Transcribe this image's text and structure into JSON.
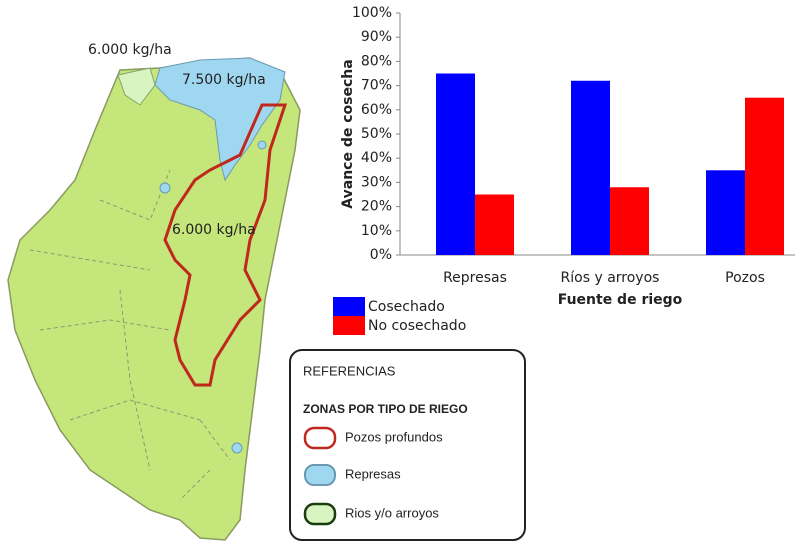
{
  "chart_data": {
    "type": "bar",
    "categories": [
      "Represas",
      "Ríos y arroyos",
      "Pozos"
    ],
    "series": [
      {
        "name": "Cosechado",
        "color": "#0000ff",
        "values": [
          75,
          72,
          35
        ]
      },
      {
        "name": "No cosechado",
        "color": "#ff0000",
        "values": [
          25,
          28,
          65
        ]
      }
    ],
    "ylim": [
      0,
      100
    ],
    "yticks": [
      {
        "value": 0,
        "label": "0%"
      },
      {
        "value": 10,
        "label": "10%"
      },
      {
        "value": 20,
        "label": "20%"
      },
      {
        "value": 30,
        "label": "30%"
      },
      {
        "value": 40,
        "label": "40%"
      },
      {
        "value": 50,
        "label": "50%"
      },
      {
        "value": 60,
        "label": "60%"
      },
      {
        "value": 70,
        "label": "70%"
      },
      {
        "value": 80,
        "label": "80%"
      },
      {
        "value": 90,
        "label": "90%"
      },
      {
        "value": 100,
        "label": "100%"
      }
    ],
    "ylabel": "Avance de cosecha",
    "xlabel": "Fuente de riego",
    "grid": false,
    "legend": "bottom-left"
  },
  "map": {
    "labels": [
      "6.000 kg/ha",
      "7.500 kg/ha",
      "6.000 kg/ha"
    ]
  },
  "references": {
    "title": "REFERENCIAS",
    "subtitle": "ZONAS POR TIPO DE RIEGO",
    "items": [
      "Pozos profundos",
      "Represas",
      "Rios y/o arroyos"
    ]
  }
}
